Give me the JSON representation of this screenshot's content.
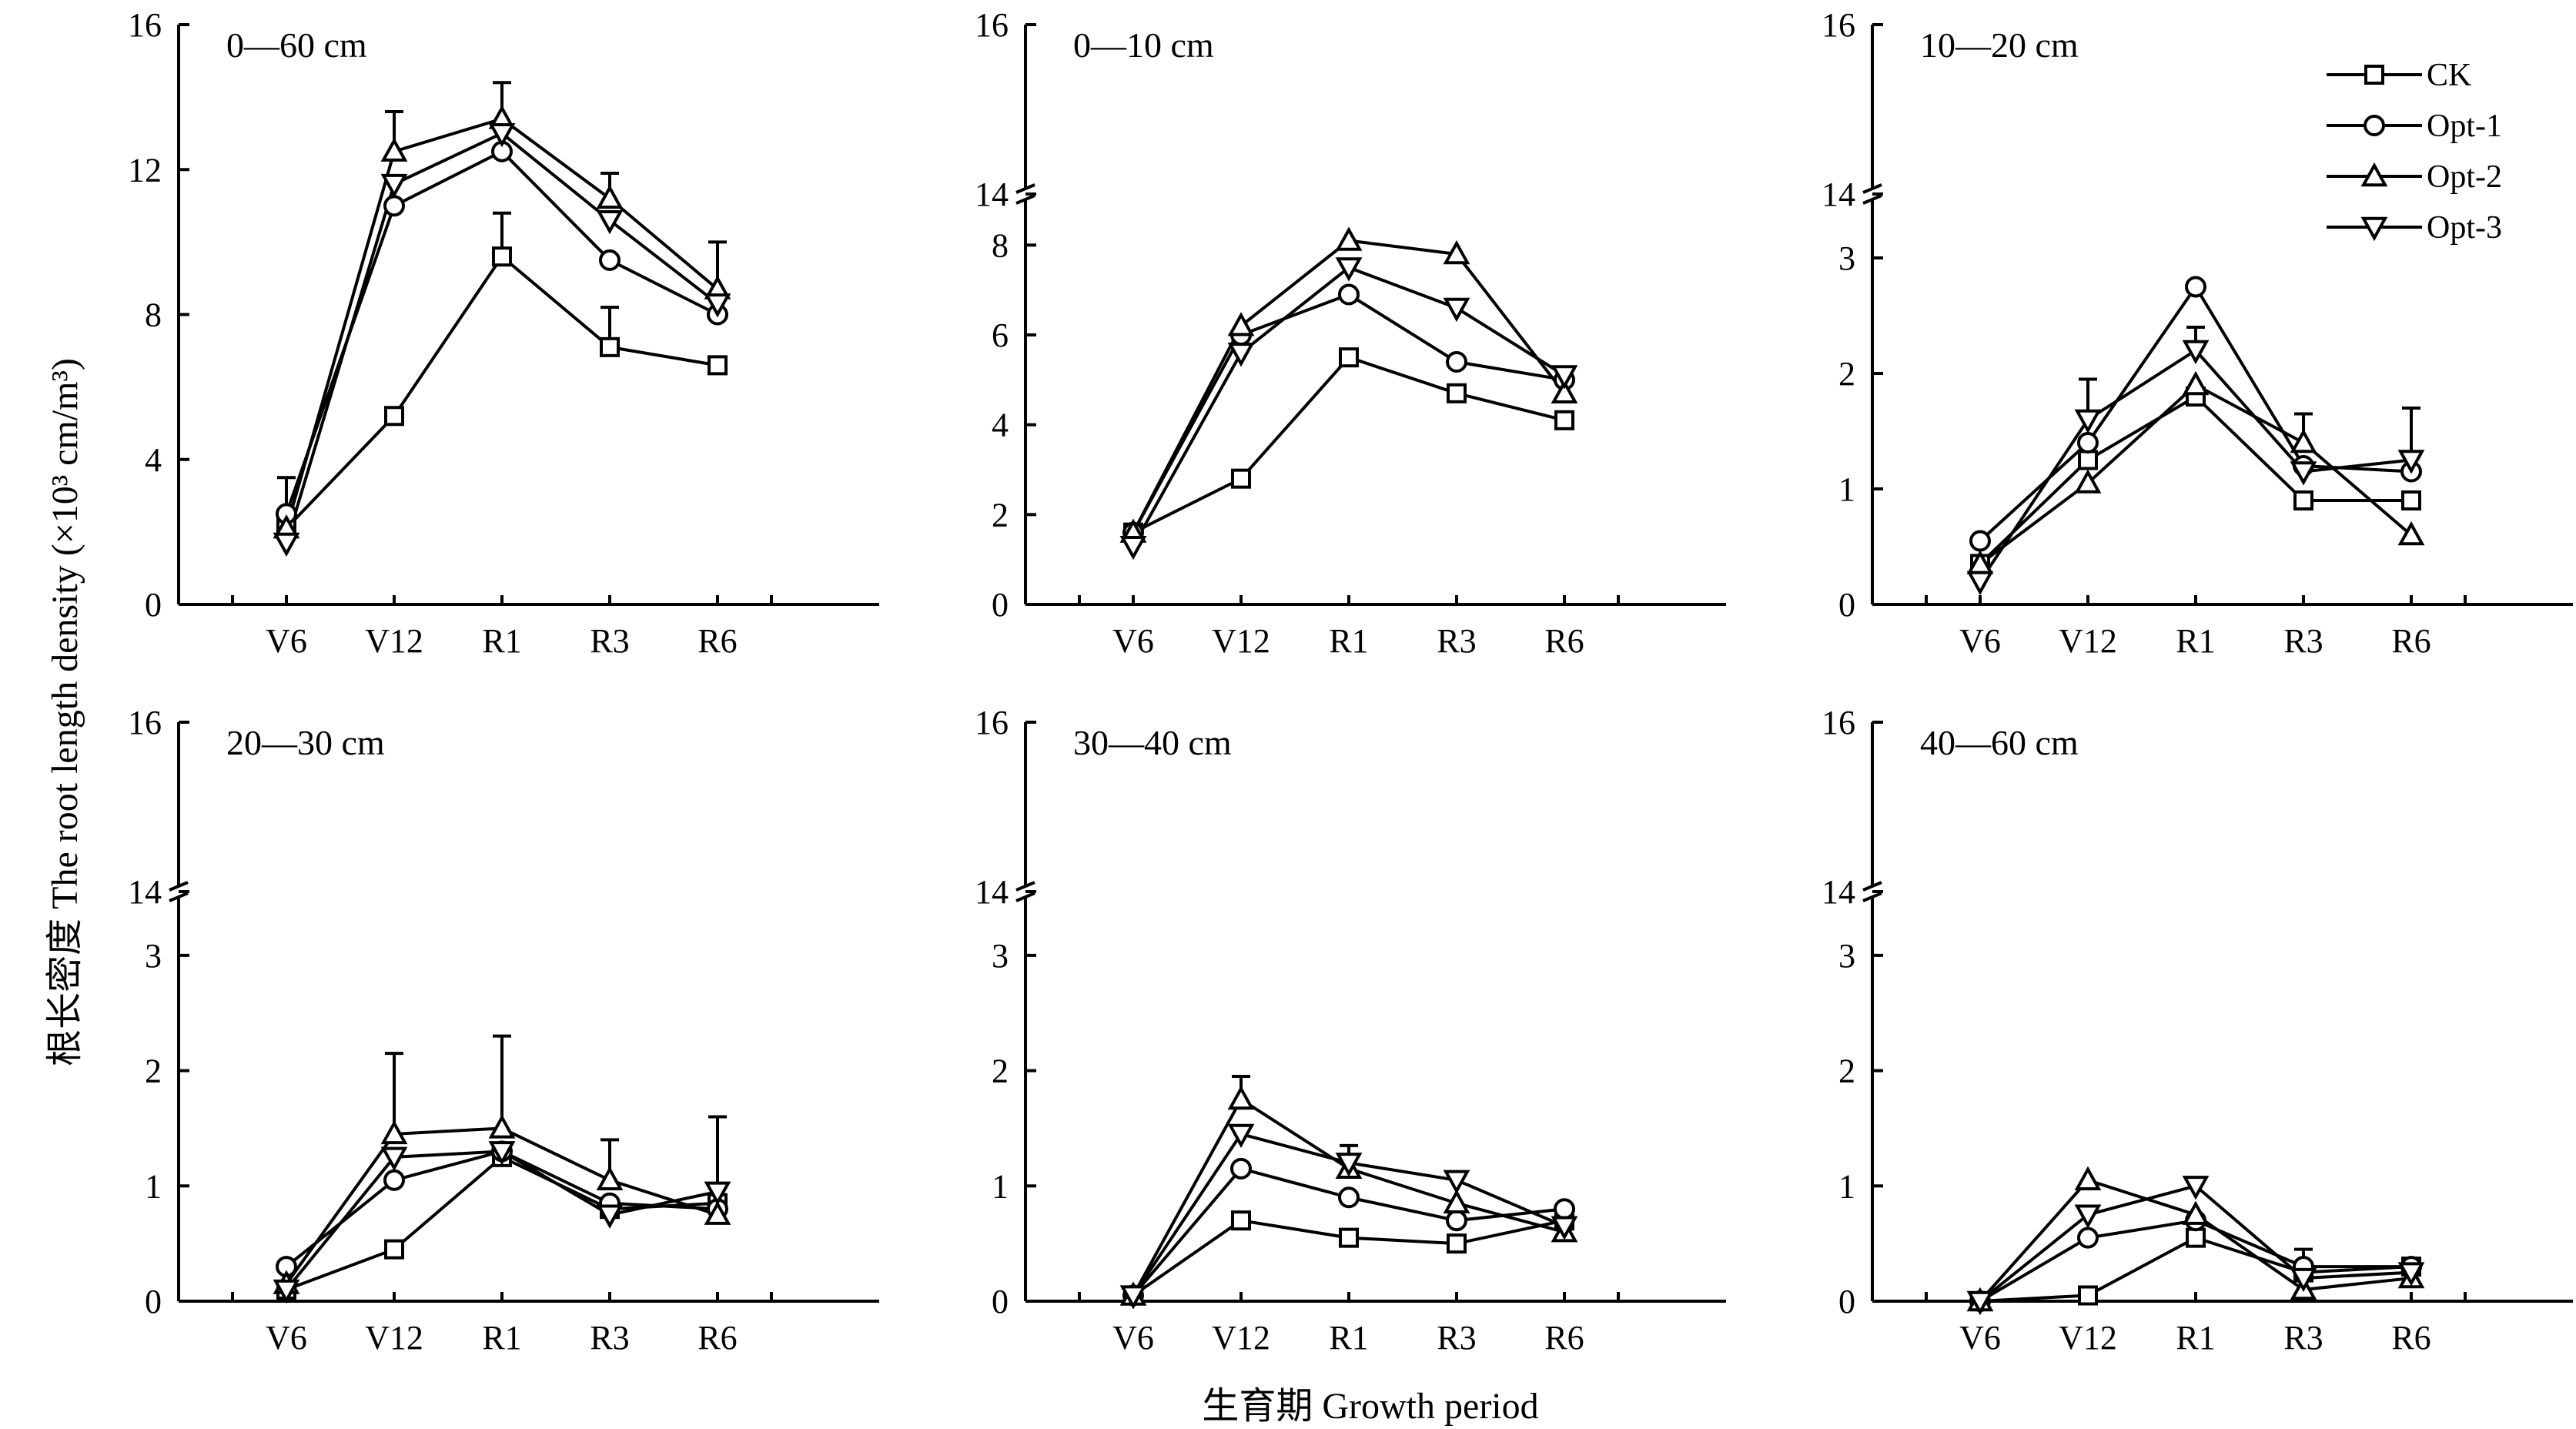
{
  "figure": {
    "ylabel": "根长密度 The root length density (×10³ cm/m³)",
    "xlabel": "生育期 Growth period"
  },
  "legend": [
    "CK",
    "Opt-1",
    "Opt-2",
    "Opt-3"
  ],
  "chart_data": [
    {
      "type": "line",
      "title": "0—60 cm",
      "categories": [
        "V6",
        "V12",
        "R1",
        "R3",
        "R6"
      ],
      "ylim": [
        0,
        16
      ],
      "yticks": [
        0,
        4,
        8,
        12,
        16
      ],
      "series": [
        {
          "name": "CK",
          "values": [
            2.1,
            5.2,
            9.6,
            7.1,
            6.6
          ],
          "err": [
            0,
            0,
            1.2,
            1.1,
            0
          ]
        },
        {
          "name": "Opt-1",
          "values": [
            2.5,
            11.0,
            12.5,
            9.5,
            8.0
          ],
          "err": [
            1.0,
            0,
            0,
            0,
            0
          ]
        },
        {
          "name": "Opt-2",
          "values": [
            2.1,
            12.5,
            13.4,
            11.2,
            8.7
          ],
          "err": [
            0,
            1.1,
            1.0,
            0.7,
            1.3
          ]
        },
        {
          "name": "Opt-3",
          "values": [
            1.7,
            11.6,
            13.0,
            10.6,
            8.3
          ],
          "err": [
            0,
            0,
            0,
            0,
            0
          ]
        }
      ]
    },
    {
      "type": "line",
      "title": "0—10 cm",
      "categories": [
        "V6",
        "V12",
        "R1",
        "R3",
        "R6"
      ],
      "ylim": [
        0,
        16
      ],
      "axis_break": [
        9,
        14
      ],
      "yticks": [
        0,
        2,
        4,
        6,
        8,
        14,
        16
      ],
      "series": [
        {
          "name": "CK",
          "values": [
            1.6,
            2.8,
            5.5,
            4.7,
            4.1
          ],
          "err": [
            0,
            0,
            0,
            0,
            0
          ]
        },
        {
          "name": "Opt-1",
          "values": [
            1.6,
            6.0,
            6.9,
            5.4,
            5.0
          ],
          "err": [
            0,
            0,
            0,
            0,
            0
          ]
        },
        {
          "name": "Opt-2",
          "values": [
            1.6,
            6.2,
            8.1,
            7.8,
            4.7
          ],
          "err": [
            0,
            0,
            0,
            0,
            0
          ]
        },
        {
          "name": "Opt-3",
          "values": [
            1.3,
            5.6,
            7.5,
            6.6,
            5.1
          ],
          "err": [
            0,
            0,
            0,
            0,
            0
          ]
        }
      ]
    },
    {
      "type": "line",
      "title": "10—20 cm",
      "categories": [
        "V6",
        "V12",
        "R1",
        "R3",
        "R6"
      ],
      "ylim": [
        0,
        16
      ],
      "axis_break": [
        3.5,
        14
      ],
      "yticks": [
        0,
        1,
        2,
        3,
        14,
        16
      ],
      "series": [
        {
          "name": "CK",
          "values": [
            0.35,
            1.25,
            1.8,
            0.9,
            0.9
          ],
          "err": [
            0,
            0,
            0,
            0,
            0
          ]
        },
        {
          "name": "Opt-1",
          "values": [
            0.55,
            1.4,
            2.75,
            1.2,
            1.15
          ],
          "err": [
            0,
            0,
            0,
            0,
            0
          ]
        },
        {
          "name": "Opt-2",
          "values": [
            0.35,
            1.05,
            1.9,
            1.4,
            0.6
          ],
          "err": [
            0,
            0,
            0,
            0.25,
            0
          ]
        },
        {
          "name": "Opt-3",
          "values": [
            0.2,
            1.6,
            2.2,
            1.15,
            1.25
          ],
          "err": [
            0,
            0.35,
            0.2,
            0,
            0.45
          ]
        }
      ]
    },
    {
      "type": "line",
      "title": "20—30 cm",
      "categories": [
        "V6",
        "V12",
        "R1",
        "R3",
        "R6"
      ],
      "ylim": [
        0,
        16
      ],
      "axis_break": [
        3.5,
        14
      ],
      "yticks": [
        0,
        1,
        2,
        3,
        14,
        16
      ],
      "series": [
        {
          "name": "CK",
          "values": [
            0.1,
            0.45,
            1.25,
            0.8,
            0.85
          ],
          "err": [
            0,
            0,
            0,
            0,
            0
          ]
        },
        {
          "name": "Opt-1",
          "values": [
            0.3,
            1.05,
            1.3,
            0.85,
            0.8
          ],
          "err": [
            0,
            0,
            0,
            0,
            0
          ]
        },
        {
          "name": "Opt-2",
          "values": [
            0.15,
            1.45,
            1.5,
            1.05,
            0.75
          ],
          "err": [
            0,
            0.7,
            0.8,
            0.35,
            0
          ]
        },
        {
          "name": "Opt-3",
          "values": [
            0.1,
            1.25,
            1.3,
            0.75,
            0.95
          ],
          "err": [
            0,
            0,
            0,
            0,
            0.65
          ]
        }
      ]
    },
    {
      "type": "line",
      "title": "30—40 cm",
      "categories": [
        "V6",
        "V12",
        "R1",
        "R3",
        "R6"
      ],
      "ylim": [
        0,
        16
      ],
      "axis_break": [
        3.5,
        14
      ],
      "yticks": [
        0,
        1,
        2,
        3,
        14,
        16
      ],
      "series": [
        {
          "name": "CK",
          "values": [
            0.05,
            0.7,
            0.55,
            0.5,
            0.7
          ],
          "err": [
            0,
            0,
            0,
            0,
            0
          ]
        },
        {
          "name": "Opt-1",
          "values": [
            0.05,
            1.15,
            0.9,
            0.7,
            0.8
          ],
          "err": [
            0,
            0,
            0,
            0,
            0
          ]
        },
        {
          "name": "Opt-2",
          "values": [
            0.05,
            1.75,
            1.15,
            0.85,
            0.6
          ],
          "err": [
            0,
            0.2,
            0,
            0,
            0
          ]
        },
        {
          "name": "Opt-3",
          "values": [
            0.05,
            1.45,
            1.2,
            1.05,
            0.65
          ],
          "err": [
            0,
            0,
            0.15,
            0,
            0
          ]
        }
      ]
    },
    {
      "type": "line",
      "title": "40—60 cm",
      "categories": [
        "V6",
        "V12",
        "R1",
        "R3",
        "R6"
      ],
      "ylim": [
        0,
        16
      ],
      "axis_break": [
        3.5,
        14
      ],
      "yticks": [
        0,
        1,
        2,
        3,
        14,
        16
      ],
      "series": [
        {
          "name": "CK",
          "values": [
            0.0,
            0.05,
            0.55,
            0.25,
            0.3
          ],
          "err": [
            0,
            0,
            0,
            0,
            0
          ]
        },
        {
          "name": "Opt-1",
          "values": [
            0.0,
            0.55,
            0.7,
            0.3,
            0.3
          ],
          "err": [
            0,
            0,
            0,
            0.15,
            0
          ]
        },
        {
          "name": "Opt-2",
          "values": [
            0.0,
            1.05,
            0.75,
            0.1,
            0.2
          ],
          "err": [
            0,
            0,
            0,
            0,
            0
          ]
        },
        {
          "name": "Opt-3",
          "values": [
            0.0,
            0.75,
            1.0,
            0.2,
            0.25
          ],
          "err": [
            0,
            0,
            0,
            0,
            0
          ]
        }
      ]
    }
  ]
}
